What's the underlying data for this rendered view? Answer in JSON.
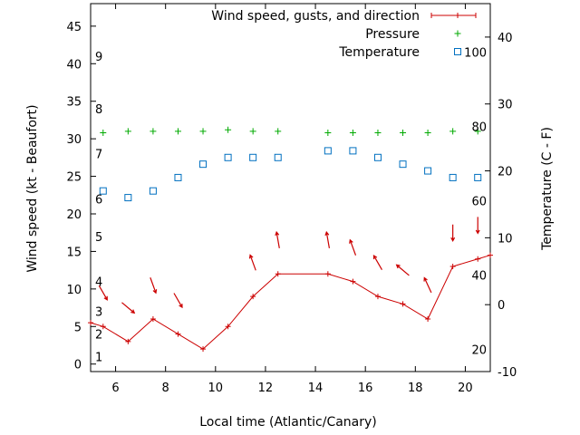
{
  "chart_data": {
    "type": "line",
    "xlabel": "Local time (Atlantic/Canary)",
    "ylabel": "Wind speed (kt - Beaufort)",
    "y2label": "Temperature (C - F)",
    "xlim": [
      5,
      21
    ],
    "ylim": [
      -1,
      48
    ],
    "y2lim": [
      -10,
      45
    ],
    "xticks": [
      6,
      8,
      10,
      12,
      14,
      16,
      18,
      20
    ],
    "yticks": [
      0,
      5,
      10,
      15,
      20,
      25,
      30,
      35,
      40,
      45
    ],
    "y2ticks": [
      -10,
      0,
      10,
      20,
      30,
      40
    ],
    "fahrenheit_ticks": [
      20,
      40,
      60,
      80,
      100
    ],
    "beaufort_ticks": [
      {
        "label": "1",
        "kt": 1
      },
      {
        "label": "2",
        "kt": 4
      },
      {
        "label": "3",
        "kt": 7
      },
      {
        "label": "4",
        "kt": 11
      },
      {
        "label": "5",
        "kt": 17
      },
      {
        "label": "6",
        "kt": 22
      },
      {
        "label": "7",
        "kt": 28
      },
      {
        "label": "8",
        "kt": 34
      },
      {
        "label": "9",
        "kt": 41
      }
    ],
    "legend_position": "top-right",
    "grid": false,
    "series": [
      {
        "name": "Wind speed, gusts, and direction",
        "type": "line",
        "axis": "y1",
        "color": "#cc0000",
        "x": [
          5,
          5.5,
          6.5,
          7.5,
          8.5,
          9.5,
          10.5,
          11.5,
          12.5,
          14.5,
          15.5,
          16.5,
          17.5,
          18.5,
          19.5,
          20.5,
          21
        ],
        "y": [
          5.5,
          5,
          3,
          6,
          4,
          2,
          5,
          9,
          12,
          12,
          11,
          9,
          8,
          6,
          13,
          14,
          14.5
        ],
        "arrow_x": [
          5.5,
          6.5,
          7.5,
          8.5,
          11.5,
          12.5,
          14.5,
          15.5,
          16.5,
          17.5,
          18.5,
          19.5,
          20.5
        ],
        "arrow_dir_deg": [
          150,
          130,
          160,
          150,
          340,
          350,
          350,
          340,
          330,
          310,
          335,
          180,
          180
        ]
      },
      {
        "name": "Pressure",
        "type": "scatter",
        "axis": "y1",
        "marker": "plus",
        "color": "#00aa00",
        "x": [
          5.5,
          6.5,
          7.5,
          8.5,
          9.5,
          10.5,
          11.5,
          12.5,
          14.5,
          15.5,
          16.5,
          17.5,
          18.5,
          19.5,
          20.5
        ],
        "y": [
          30.8,
          31,
          31,
          31,
          31,
          31.2,
          31,
          31,
          30.8,
          30.8,
          30.8,
          30.8,
          30.8,
          31,
          31
        ]
      },
      {
        "name": "Temperature",
        "type": "scatter",
        "axis": "y2",
        "marker": "square",
        "color": "#0070c0",
        "x": [
          5.5,
          6.5,
          7.5,
          8.5,
          9.5,
          10.5,
          11.5,
          12.5,
          14.5,
          15.5,
          16.5,
          17.5,
          18.5,
          19.5,
          20.5
        ],
        "y": [
          17,
          16,
          17,
          19,
          21,
          22,
          22,
          22,
          23,
          23,
          22,
          21,
          20,
          19,
          19
        ]
      }
    ]
  }
}
